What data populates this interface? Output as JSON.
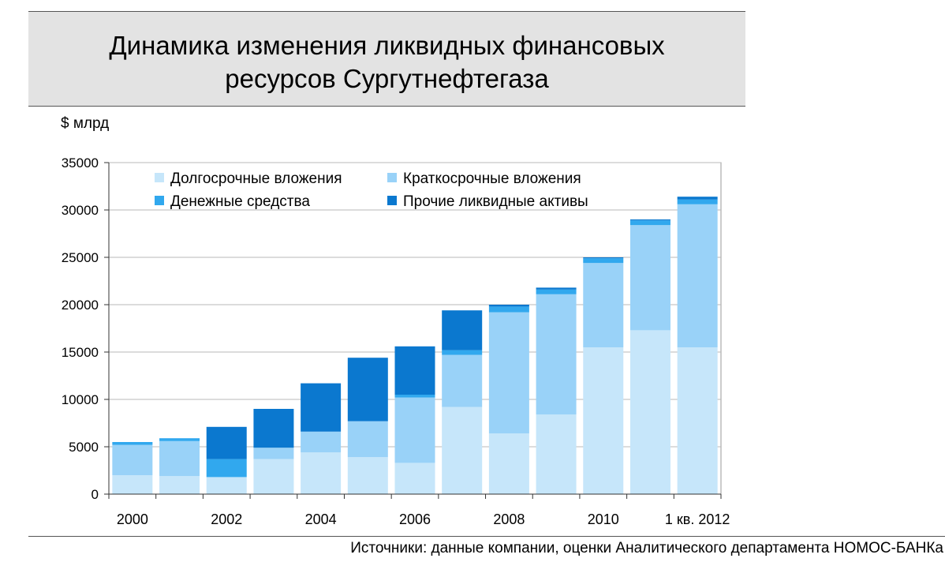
{
  "chart_data": {
    "type": "bar",
    "stacked": true,
    "title": "Динамика изменения ликвидных финансовых ресурсов Сургутнефтегаза",
    "title_lines": [
      "Динамика изменения ликвидных финансовых",
      "ресурсов Сургутнефтегаза"
    ],
    "ylabel": "$ млрд",
    "ylim": [
      0,
      35000
    ],
    "yticks": [
      0,
      5000,
      10000,
      15000,
      20000,
      25000,
      30000,
      35000
    ],
    "grid": true,
    "legend_position": "top",
    "categories": [
      "2000",
      "2001",
      "2002",
      "2003",
      "2004",
      "2005",
      "2006",
      "2007",
      "2008",
      "2009",
      "2010",
      "2011",
      "1 кв. 2012"
    ],
    "xtick_labels": [
      {
        "index": 0,
        "label": "2000"
      },
      {
        "index": 2,
        "label": "2002"
      },
      {
        "index": 4,
        "label": "2004"
      },
      {
        "index": 6,
        "label": "2006"
      },
      {
        "index": 8,
        "label": "2008"
      },
      {
        "index": 10,
        "label": "2010"
      },
      {
        "index": 12,
        "label": "1 кв. 2012"
      }
    ],
    "series": [
      {
        "name": "Долгосрочные вложения",
        "color": "#c6e6fa",
        "values": [
          2000,
          1900,
          1800,
          3700,
          4400,
          3900,
          3300,
          9200,
          6400,
          8400,
          15500,
          17300,
          15500
        ]
      },
      {
        "name": "Краткосрочные вложения",
        "color": "#99d2f8",
        "values": [
          3200,
          3700,
          0,
          1200,
          2200,
          3800,
          6900,
          5500,
          12800,
          12700,
          8900,
          11100,
          15100
        ]
      },
      {
        "name": "Денежные средства",
        "color": "#31a8ee",
        "values": [
          300,
          300,
          1900,
          0,
          0,
          0,
          300,
          500,
          600,
          500,
          500,
          500,
          500
        ]
      },
      {
        "name": "Прочие ликвидные активы",
        "color": "#0b78cf",
        "values": [
          0,
          0,
          3400,
          4100,
          5100,
          6700,
          5100,
          4200,
          200,
          200,
          100,
          100,
          300
        ]
      }
    ]
  },
  "source": "Источники: данные компании,  оценки Аналитического департамента НОМОС-БАНКа"
}
